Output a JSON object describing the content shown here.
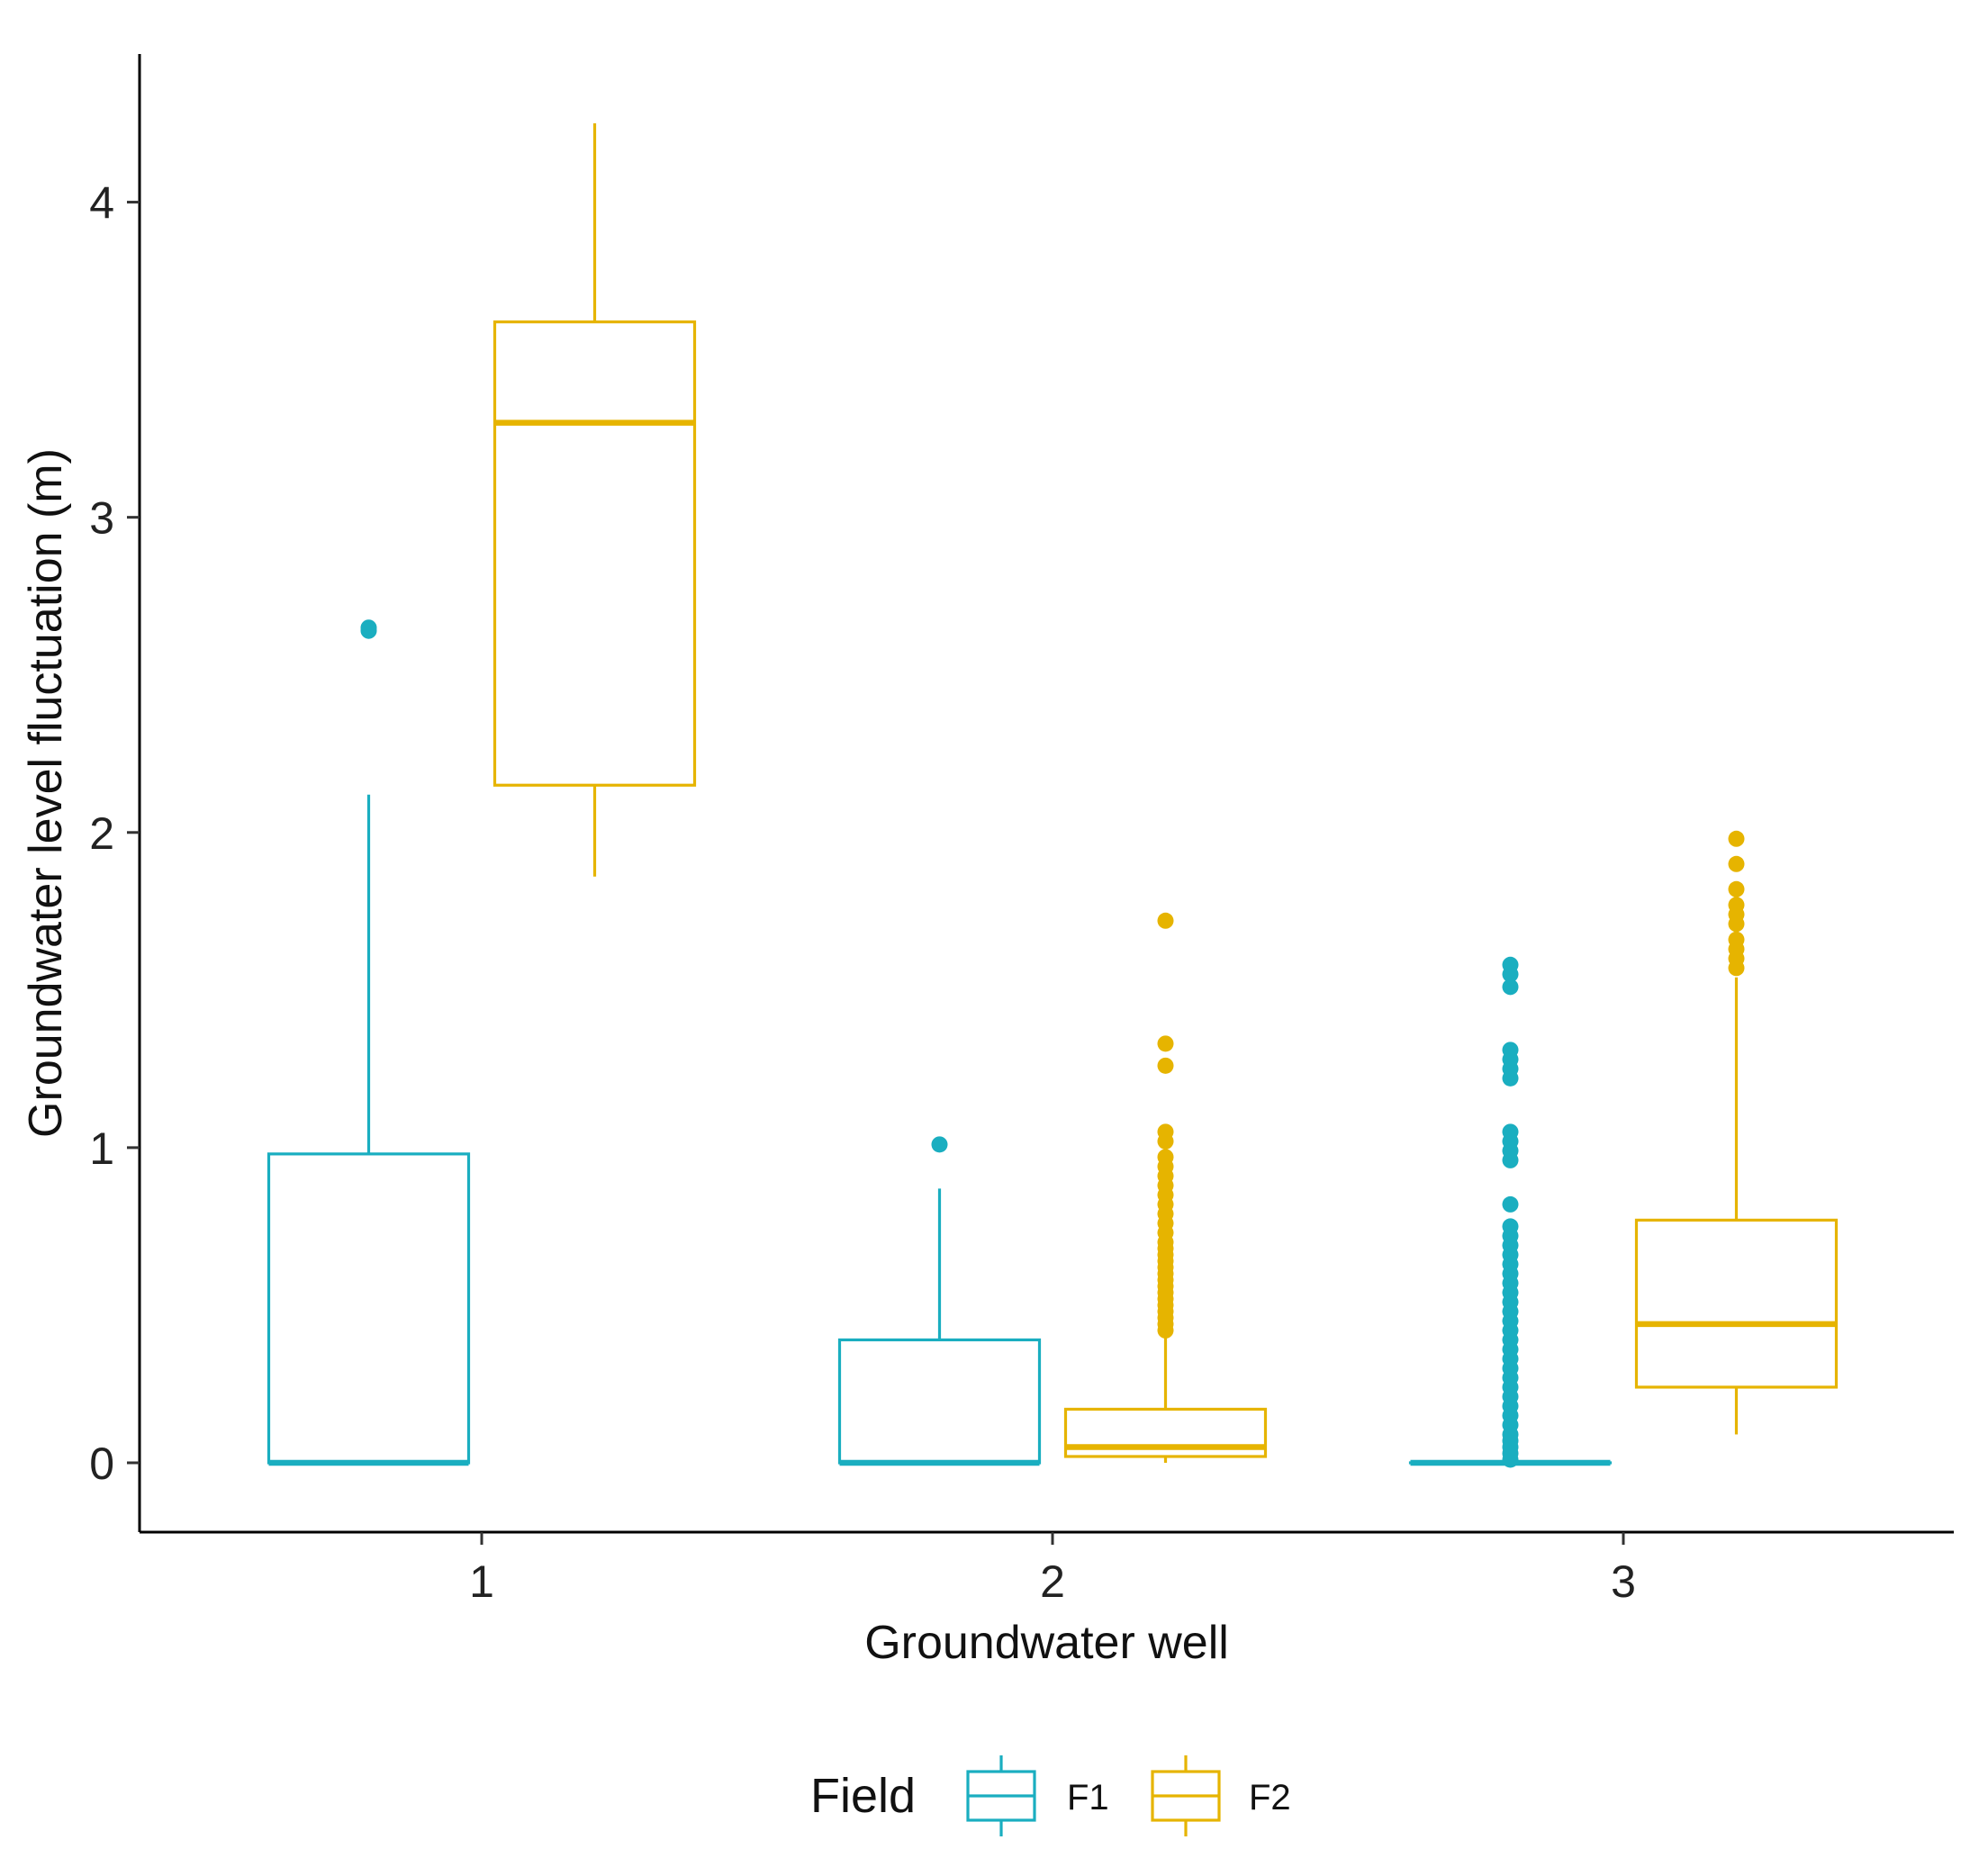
{
  "chart_data": {
    "type": "boxplot",
    "xlabel": "Groundwater well",
    "ylabel": "Groundwater level fluctuation (m)",
    "categories": [
      "1",
      "2",
      "3"
    ],
    "ylim": [
      -0.22,
      4.47
    ],
    "yticks": [
      0,
      1,
      2,
      3,
      4
    ],
    "grid": false,
    "legend_position": "bottom",
    "legend": {
      "title": "Field",
      "entries": [
        "F1",
        "F2"
      ]
    },
    "series": [
      {
        "name": "F1",
        "color": "#1aaec0",
        "boxes": [
          {
            "category": "1",
            "whisker_low": 0,
            "q1": 0,
            "median": 0,
            "q3": 0.98,
            "whisker_high": 2.12,
            "outliers": [
              2.64,
              2.65
            ]
          },
          {
            "category": "2",
            "whisker_low": 0,
            "q1": 0,
            "median": 0,
            "q3": 0.39,
            "whisker_high": 0.87,
            "outliers": [
              1.01
            ]
          },
          {
            "category": "3",
            "whisker_low": 0,
            "q1": 0,
            "median": 0,
            "q3": 0,
            "whisker_high": 0,
            "outliers": [
              0.01,
              0.03,
              0.05,
              0.07,
              0.09,
              0.12,
              0.15,
              0.18,
              0.21,
              0.24,
              0.27,
              0.3,
              0.33,
              0.36,
              0.39,
              0.42,
              0.45,
              0.48,
              0.51,
              0.54,
              0.57,
              0.6,
              0.63,
              0.66,
              0.69,
              0.72,
              0.75,
              0.82,
              0.96,
              0.99,
              1.02,
              1.05,
              1.22,
              1.25,
              1.28,
              1.31,
              1.51,
              1.55,
              1.58
            ]
          }
        ]
      },
      {
        "name": "F2",
        "color": "#e6b400",
        "boxes": [
          {
            "category": "1",
            "whisker_low": 1.86,
            "q1": 2.15,
            "median": 3.3,
            "q3": 3.62,
            "whisker_high": 4.25,
            "outliers": []
          },
          {
            "category": "2",
            "whisker_low": 0.0,
            "q1": 0.02,
            "median": 0.05,
            "q3": 0.17,
            "whisker_high": 0.41,
            "outliers": [
              0.42,
              0.44,
              0.46,
              0.48,
              0.5,
              0.52,
              0.54,
              0.56,
              0.58,
              0.6,
              0.62,
              0.64,
              0.66,
              0.68,
              0.7,
              0.73,
              0.76,
              0.79,
              0.82,
              0.85,
              0.88,
              0.91,
              0.94,
              0.97,
              1.02,
              1.05,
              1.26,
              1.33,
              1.72
            ]
          },
          {
            "category": "3",
            "whisker_low": 0.09,
            "q1": 0.24,
            "median": 0.44,
            "q3": 0.77,
            "whisker_high": 1.54,
            "outliers": [
              1.57,
              1.6,
              1.63,
              1.66,
              1.71,
              1.74,
              1.77,
              1.82,
              1.9,
              1.98
            ]
          }
        ]
      }
    ]
  }
}
